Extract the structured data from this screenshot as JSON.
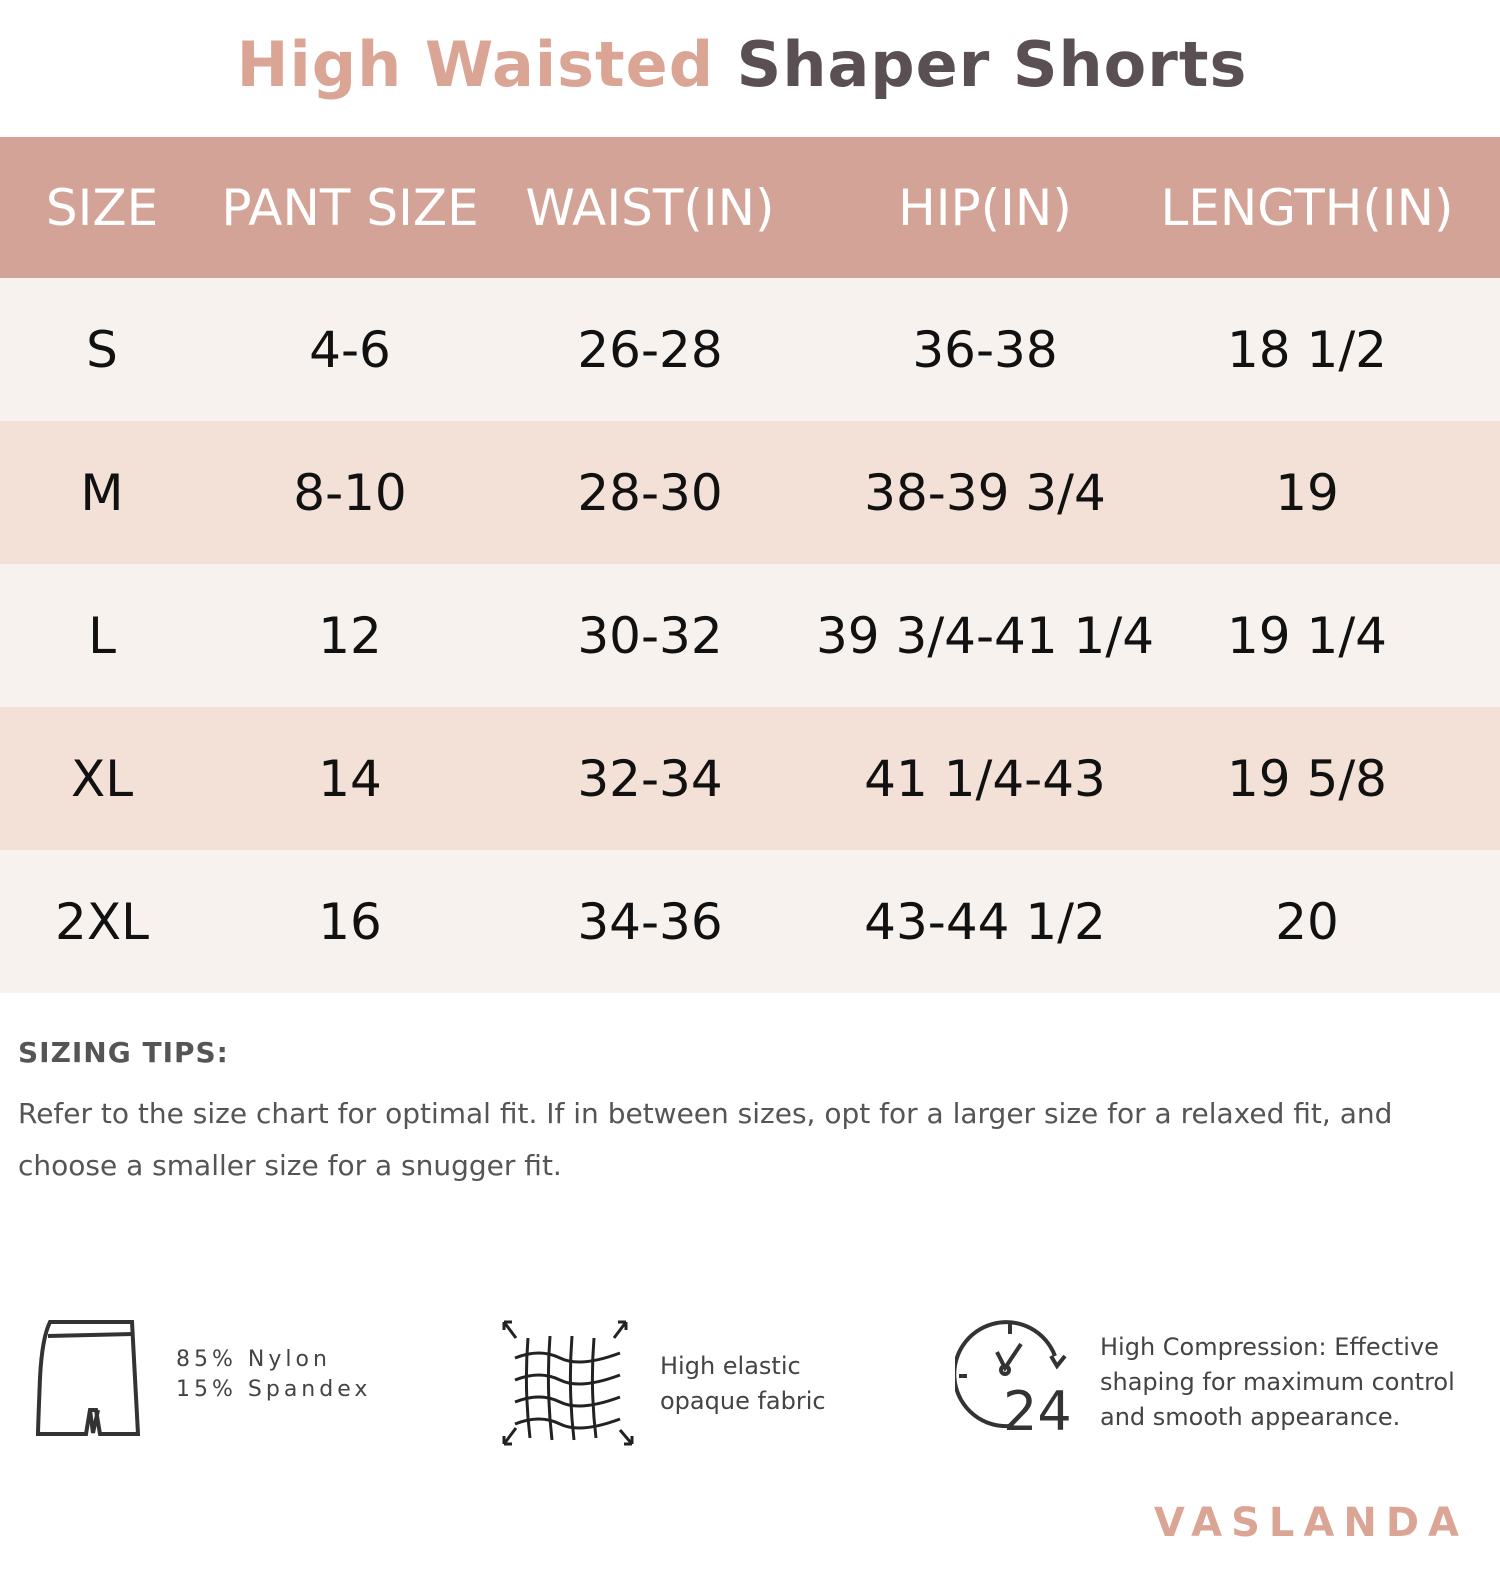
{
  "title": {
    "part1": "High Waisted",
    "part2": "Shaper Shorts"
  },
  "colors": {
    "title_accent": "#dba596",
    "title_dark": "#5a4f52",
    "header_bg": "#d4a397",
    "row_light": "#f8f2ee",
    "row_alt": "#f3e0d6"
  },
  "table": {
    "headers": [
      "SIZE",
      "PANT SIZE",
      "WAIST(IN)",
      "HIP(IN)",
      "LENGTH(IN)"
    ],
    "rows": [
      [
        "S",
        "4-6",
        "26-28",
        "36-38",
        "18 1/2"
      ],
      [
        "M",
        "8-10",
        "28-30",
        "38-39 3/4",
        "19"
      ],
      [
        "L",
        "12",
        "30-32",
        "39 3/4-41 1/4",
        "19 1/4"
      ],
      [
        "XL",
        "14",
        "32-34",
        "41 1/4-43",
        "19 5/8"
      ],
      [
        "2XL",
        "16",
        "34-36",
        "43-44 1/2",
        "20"
      ]
    ]
  },
  "tips": {
    "heading": "SIZING TIPS:",
    "text": "Refer to the size chart for optimal fit. If in between sizes, opt for a  larger size for a relaxed fit, and choose a smaller size for a snugger fit."
  },
  "features": [
    {
      "icon": "shorts-icon",
      "line1": "85% Nylon",
      "line2": "15% Spandex"
    },
    {
      "icon": "stretch-fabric-icon",
      "line1": "High elastic",
      "line2": "opaque fabric"
    },
    {
      "icon": "clock-24-icon",
      "line1": "High Compression: Effective",
      "line2": "shaping for maximum control",
      "line3": "and smooth appearance."
    }
  ],
  "brand": "VASLANDA"
}
